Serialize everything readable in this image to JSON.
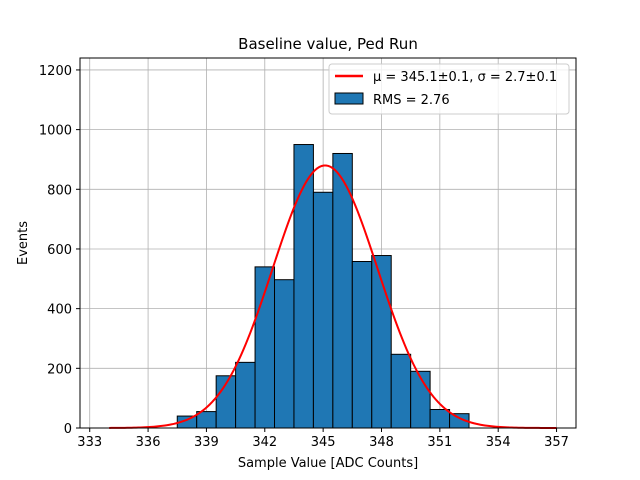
{
  "chart_data": {
    "type": "bar",
    "title": "Baseline value, Ped Run",
    "xlabel": "Sample Value [ADC Counts]",
    "ylabel": "Events",
    "xlim": [
      332.5,
      358
    ],
    "ylim": [
      0,
      1240
    ],
    "xticks": [
      333,
      336,
      339,
      342,
      345,
      348,
      351,
      354,
      357
    ],
    "yticks": [
      0,
      200,
      400,
      600,
      800,
      1000,
      1200
    ],
    "grid": true,
    "legend_position": "top-right",
    "bin_width": 1,
    "bins": [
      {
        "x0": 337.5,
        "value": 40
      },
      {
        "x0": 338.5,
        "value": 55
      },
      {
        "x0": 339.5,
        "value": 175
      },
      {
        "x0": 340.5,
        "value": 220
      },
      {
        "x0": 341.5,
        "value": 540
      },
      {
        "x0": 342.5,
        "value": 497
      },
      {
        "x0": 343.5,
        "value": 950
      },
      {
        "x0": 344.5,
        "value": 790
      },
      {
        "x0": 345.5,
        "value": 920
      },
      {
        "x0": 346.5,
        "value": 558
      },
      {
        "x0": 347.5,
        "value": 578
      },
      {
        "x0": 348.5,
        "value": 247
      },
      {
        "x0": 349.5,
        "value": 190
      },
      {
        "x0": 350.5,
        "value": 62
      },
      {
        "x0": 351.5,
        "value": 48
      }
    ],
    "fit": {
      "mu": 345.1,
      "sigma": 2.7,
      "amplitude": 880,
      "x_start": 334,
      "x_end": 357,
      "color": "#ff0000"
    },
    "bar_color": "#1f77b4",
    "legend": [
      {
        "label": "μ = 345.1±0.1, σ = 2.7±0.1",
        "kind": "line"
      },
      {
        "label": "RMS = 2.76",
        "kind": "patch"
      }
    ]
  }
}
